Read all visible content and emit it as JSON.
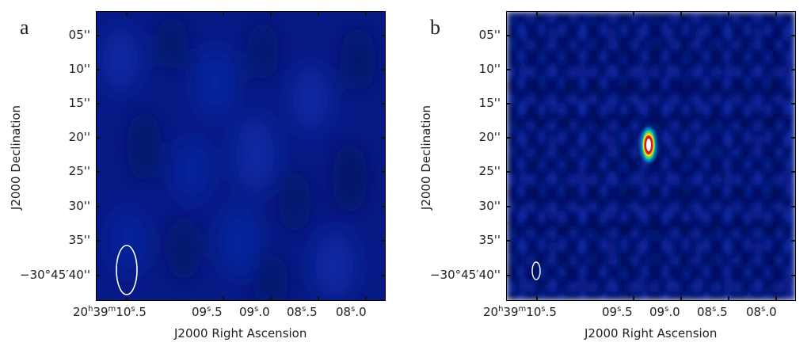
{
  "panels": [
    {
      "letter": "a",
      "y_title": "J2000 Declination",
      "x_title": "J2000 Right Ascension",
      "y_ticks": [
        "05''",
        "10''",
        "15''",
        "20''",
        "25''",
        "30''",
        "35''",
        "−30°45′40''"
      ],
      "x_ticks": [
        {
          "h": "20",
          "m": "39",
          "s": "10",
          "frac": ".5",
          "full": true
        },
        {
          "s": "09",
          "frac": ".5"
        },
        {
          "s": "09",
          "frac": ".0"
        },
        {
          "s": "08",
          "frac": ".5"
        },
        {
          "s": "08",
          "frac": ".0"
        }
      ],
      "colors": {
        "background": "#071a86",
        "beam": "#ffffff"
      }
    },
    {
      "letter": "b",
      "y_title": "J2000 Declination",
      "x_title": "J2000 Right Ascension",
      "y_ticks": [
        "05''",
        "10''",
        "15''",
        "20''",
        "25''",
        "30''",
        "35''",
        "−30°45′40''"
      ],
      "x_ticks": [
        {
          "h": "20",
          "m": "39",
          "s": "10",
          "frac": ".5",
          "full": true
        },
        {
          "s": "09",
          "frac": ".5"
        },
        {
          "s": "09",
          "frac": ".0"
        },
        {
          "s": "08",
          "frac": ".5"
        },
        {
          "s": "08",
          "frac": ".0"
        }
      ],
      "colors": {
        "background": "#040e6a",
        "source_core": "#ffffff",
        "source_ring": "#d21a1a",
        "source_halo": "#ffd200",
        "beam": "#ffffff"
      }
    }
  ]
}
